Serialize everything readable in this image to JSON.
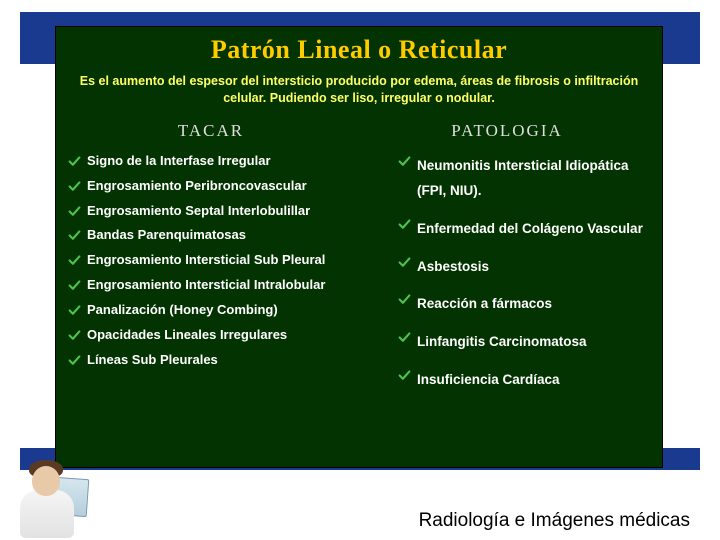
{
  "panel": {
    "background_color": "#033300",
    "title": "Patrón Lineal o Reticular",
    "title_color": "#ffcc00",
    "title_fontsize": 26,
    "subtitle": "Es el aumento del espesor del intersticio producido por edema, áreas de fibrosis o infiltración celular. Pudiendo ser liso, irregular o nodular.",
    "subtitle_color": "#ffff66",
    "subtitle_fontsize": 12.5,
    "checkmark_color": "#4dc24d",
    "item_text_color": "#ffffff",
    "columns": {
      "left": {
        "header": "TACAR",
        "header_color": "#dedede",
        "items": [
          "Signo de la Interfase Irregular",
          "Engrosamiento Peribroncovascular",
          "Engrosamiento Septal Interlobulillar",
          "Bandas Parenquimatosas",
          "Engrosamiento Intersticial Sub Pleural",
          "Engrosamiento Intersticial Intralobular",
          "Panalización (Honey Combing)",
          "Opacidades Lineales Irregulares",
          "Líneas Sub Pleurales"
        ]
      },
      "right": {
        "header": "PATOLOGIA",
        "header_color": "#dedede",
        "items": [
          "Neumonitis Intersticial Idiopática (FPI, NIU).",
          "Enfermedad del Colágeno Vascular",
          "Asbestosis",
          "Reacción a fármacos",
          "Linfangitis Carcinomatosa",
          "Insuficiencia Cardíaca"
        ]
      }
    }
  },
  "frame": {
    "blue_band_color": "#1a3a8f"
  },
  "footer": {
    "text": "Radiología e Imágenes médicas",
    "color": "#000000",
    "fontsize": 19
  }
}
